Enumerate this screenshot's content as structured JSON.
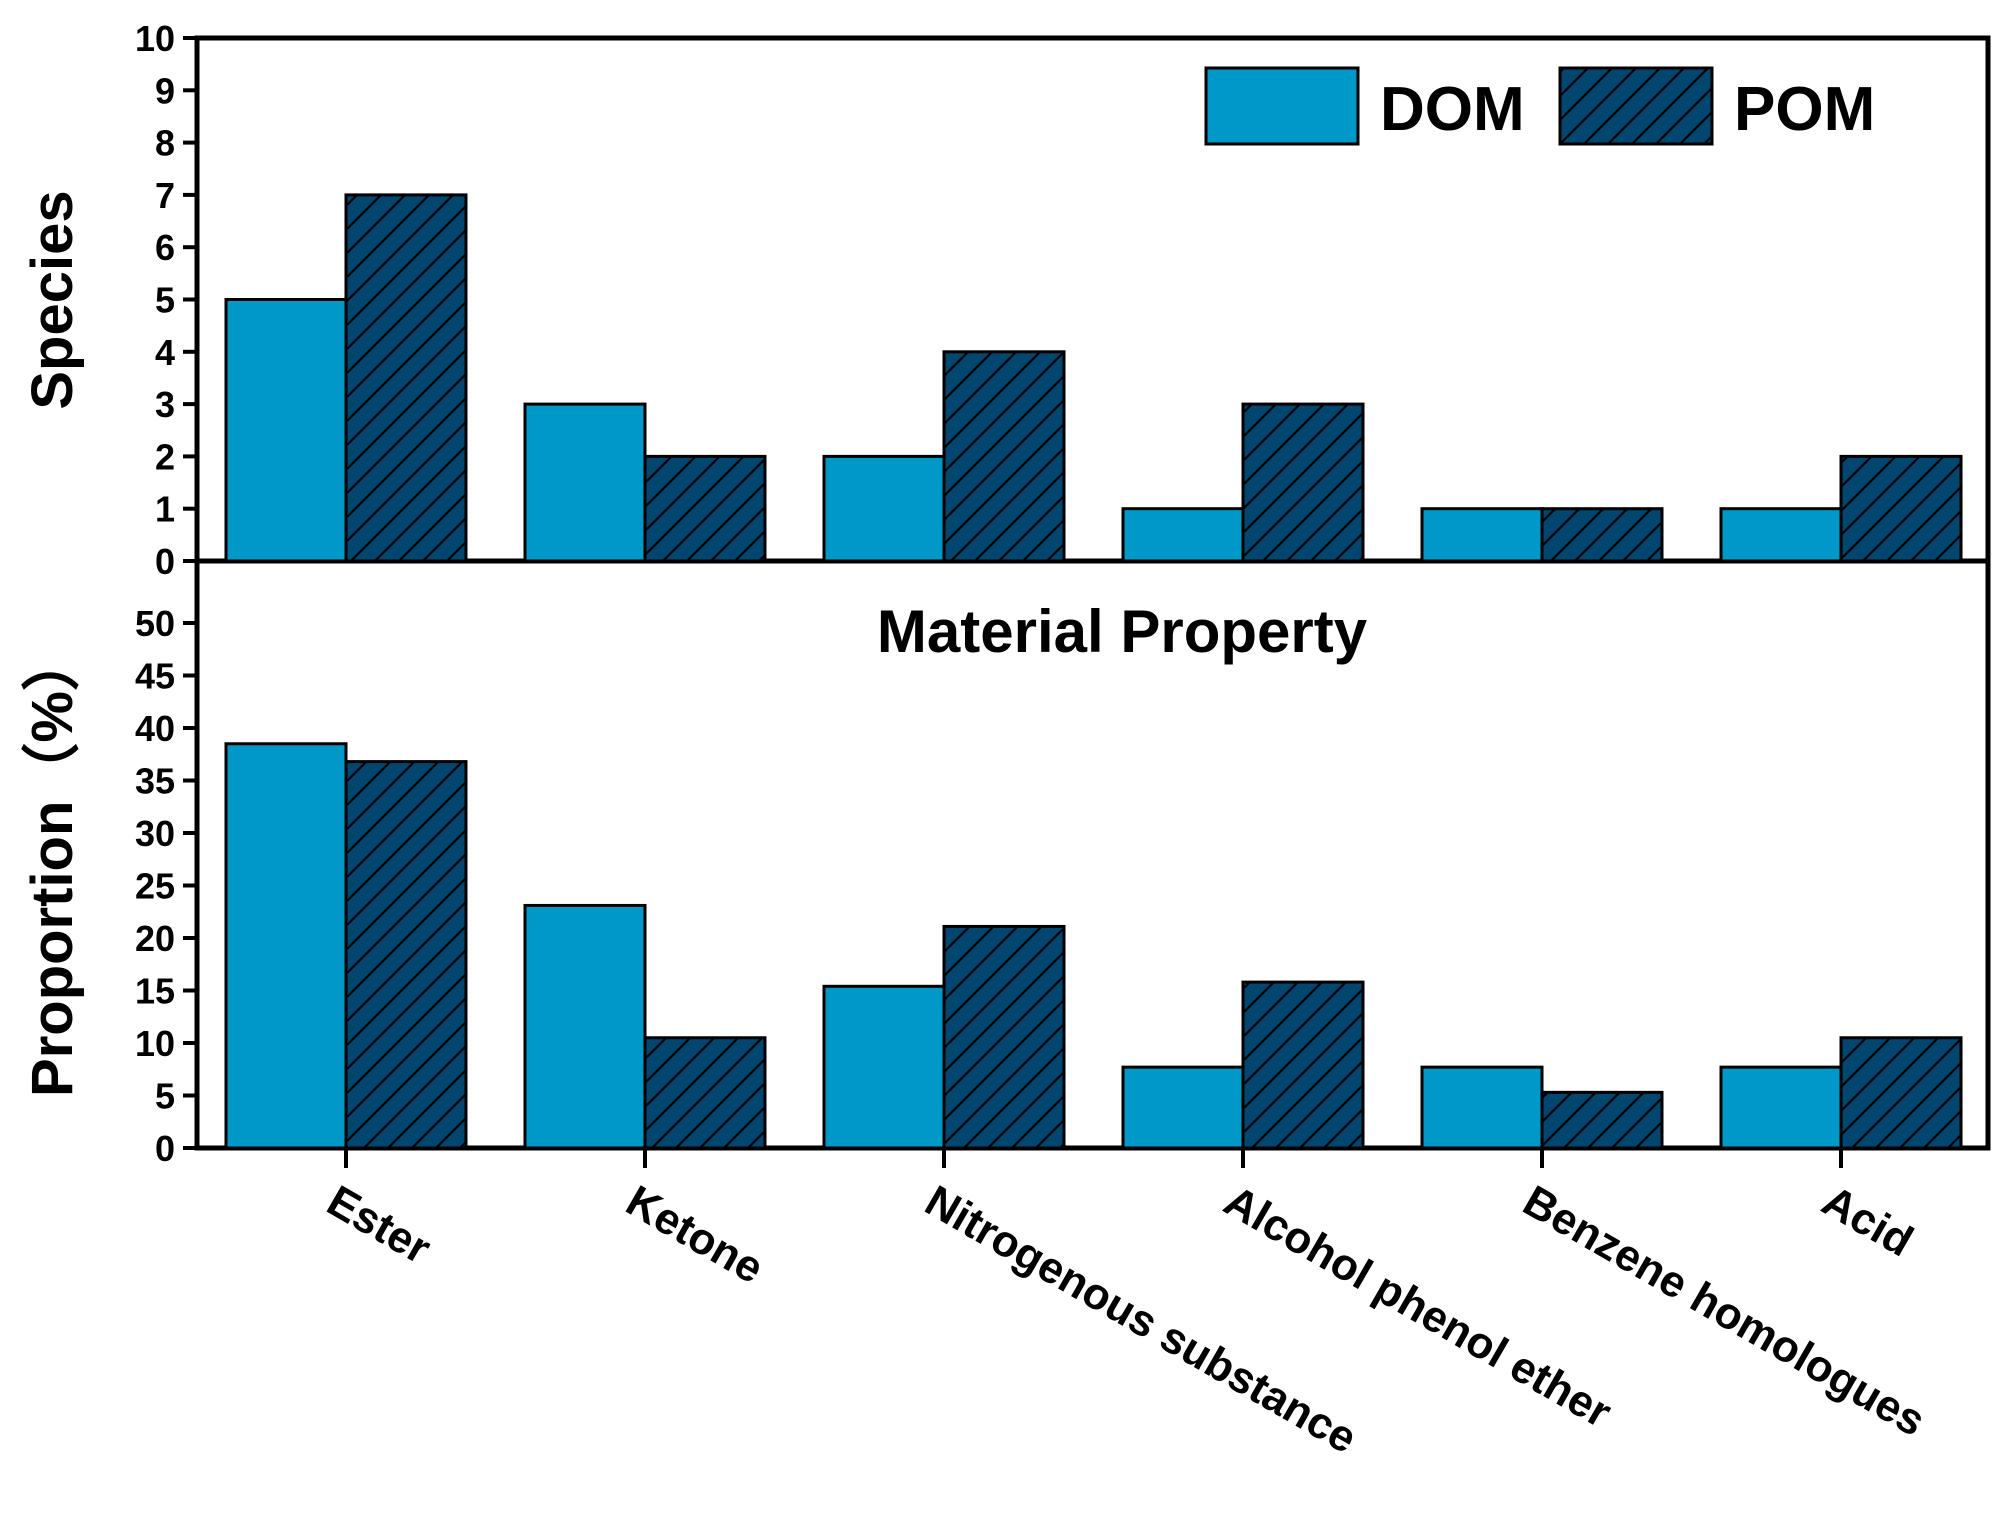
{
  "chart_data": {
    "type": "bar",
    "categories": [
      "Ester",
      "Ketone",
      "Nitrogenous substance",
      "Alcohol phenol ether",
      "Benzene homologues",
      "Acid"
    ],
    "legend": [
      {
        "name": "DOM",
        "color": "#0098C7",
        "pattern": "solid"
      },
      {
        "name": "POM",
        "color": "#00466E",
        "pattern": "hatched"
      }
    ],
    "legend_position": "top-right",
    "panels": [
      {
        "ylabel": "Species",
        "ylim": [
          0,
          10
        ],
        "yticks": [
          "0",
          "1",
          "2",
          "3",
          "4",
          "5",
          "6",
          "7",
          "8",
          "9",
          "10"
        ],
        "series": [
          {
            "name": "DOM",
            "values": [
              5,
              3,
              2,
              1,
              1,
              1
            ]
          },
          {
            "name": "POM",
            "values": [
              7,
              2,
              4,
              3,
              1,
              2
            ]
          }
        ]
      },
      {
        "title": "Material Property",
        "ylabel": "Proportion（%）",
        "ylim": [
          0,
          55
        ],
        "yticks": [
          "0",
          "5",
          "10",
          "15",
          "20",
          "25",
          "30",
          "35",
          "40",
          "45",
          "50"
        ],
        "series": [
          {
            "name": "DOM",
            "values": [
              38.5,
              23.1,
              15.4,
              7.7,
              7.7,
              7.7
            ]
          },
          {
            "name": "POM",
            "values": [
              36.8,
              10.5,
              21.1,
              15.8,
              5.3,
              10.5
            ]
          }
        ]
      }
    ]
  }
}
